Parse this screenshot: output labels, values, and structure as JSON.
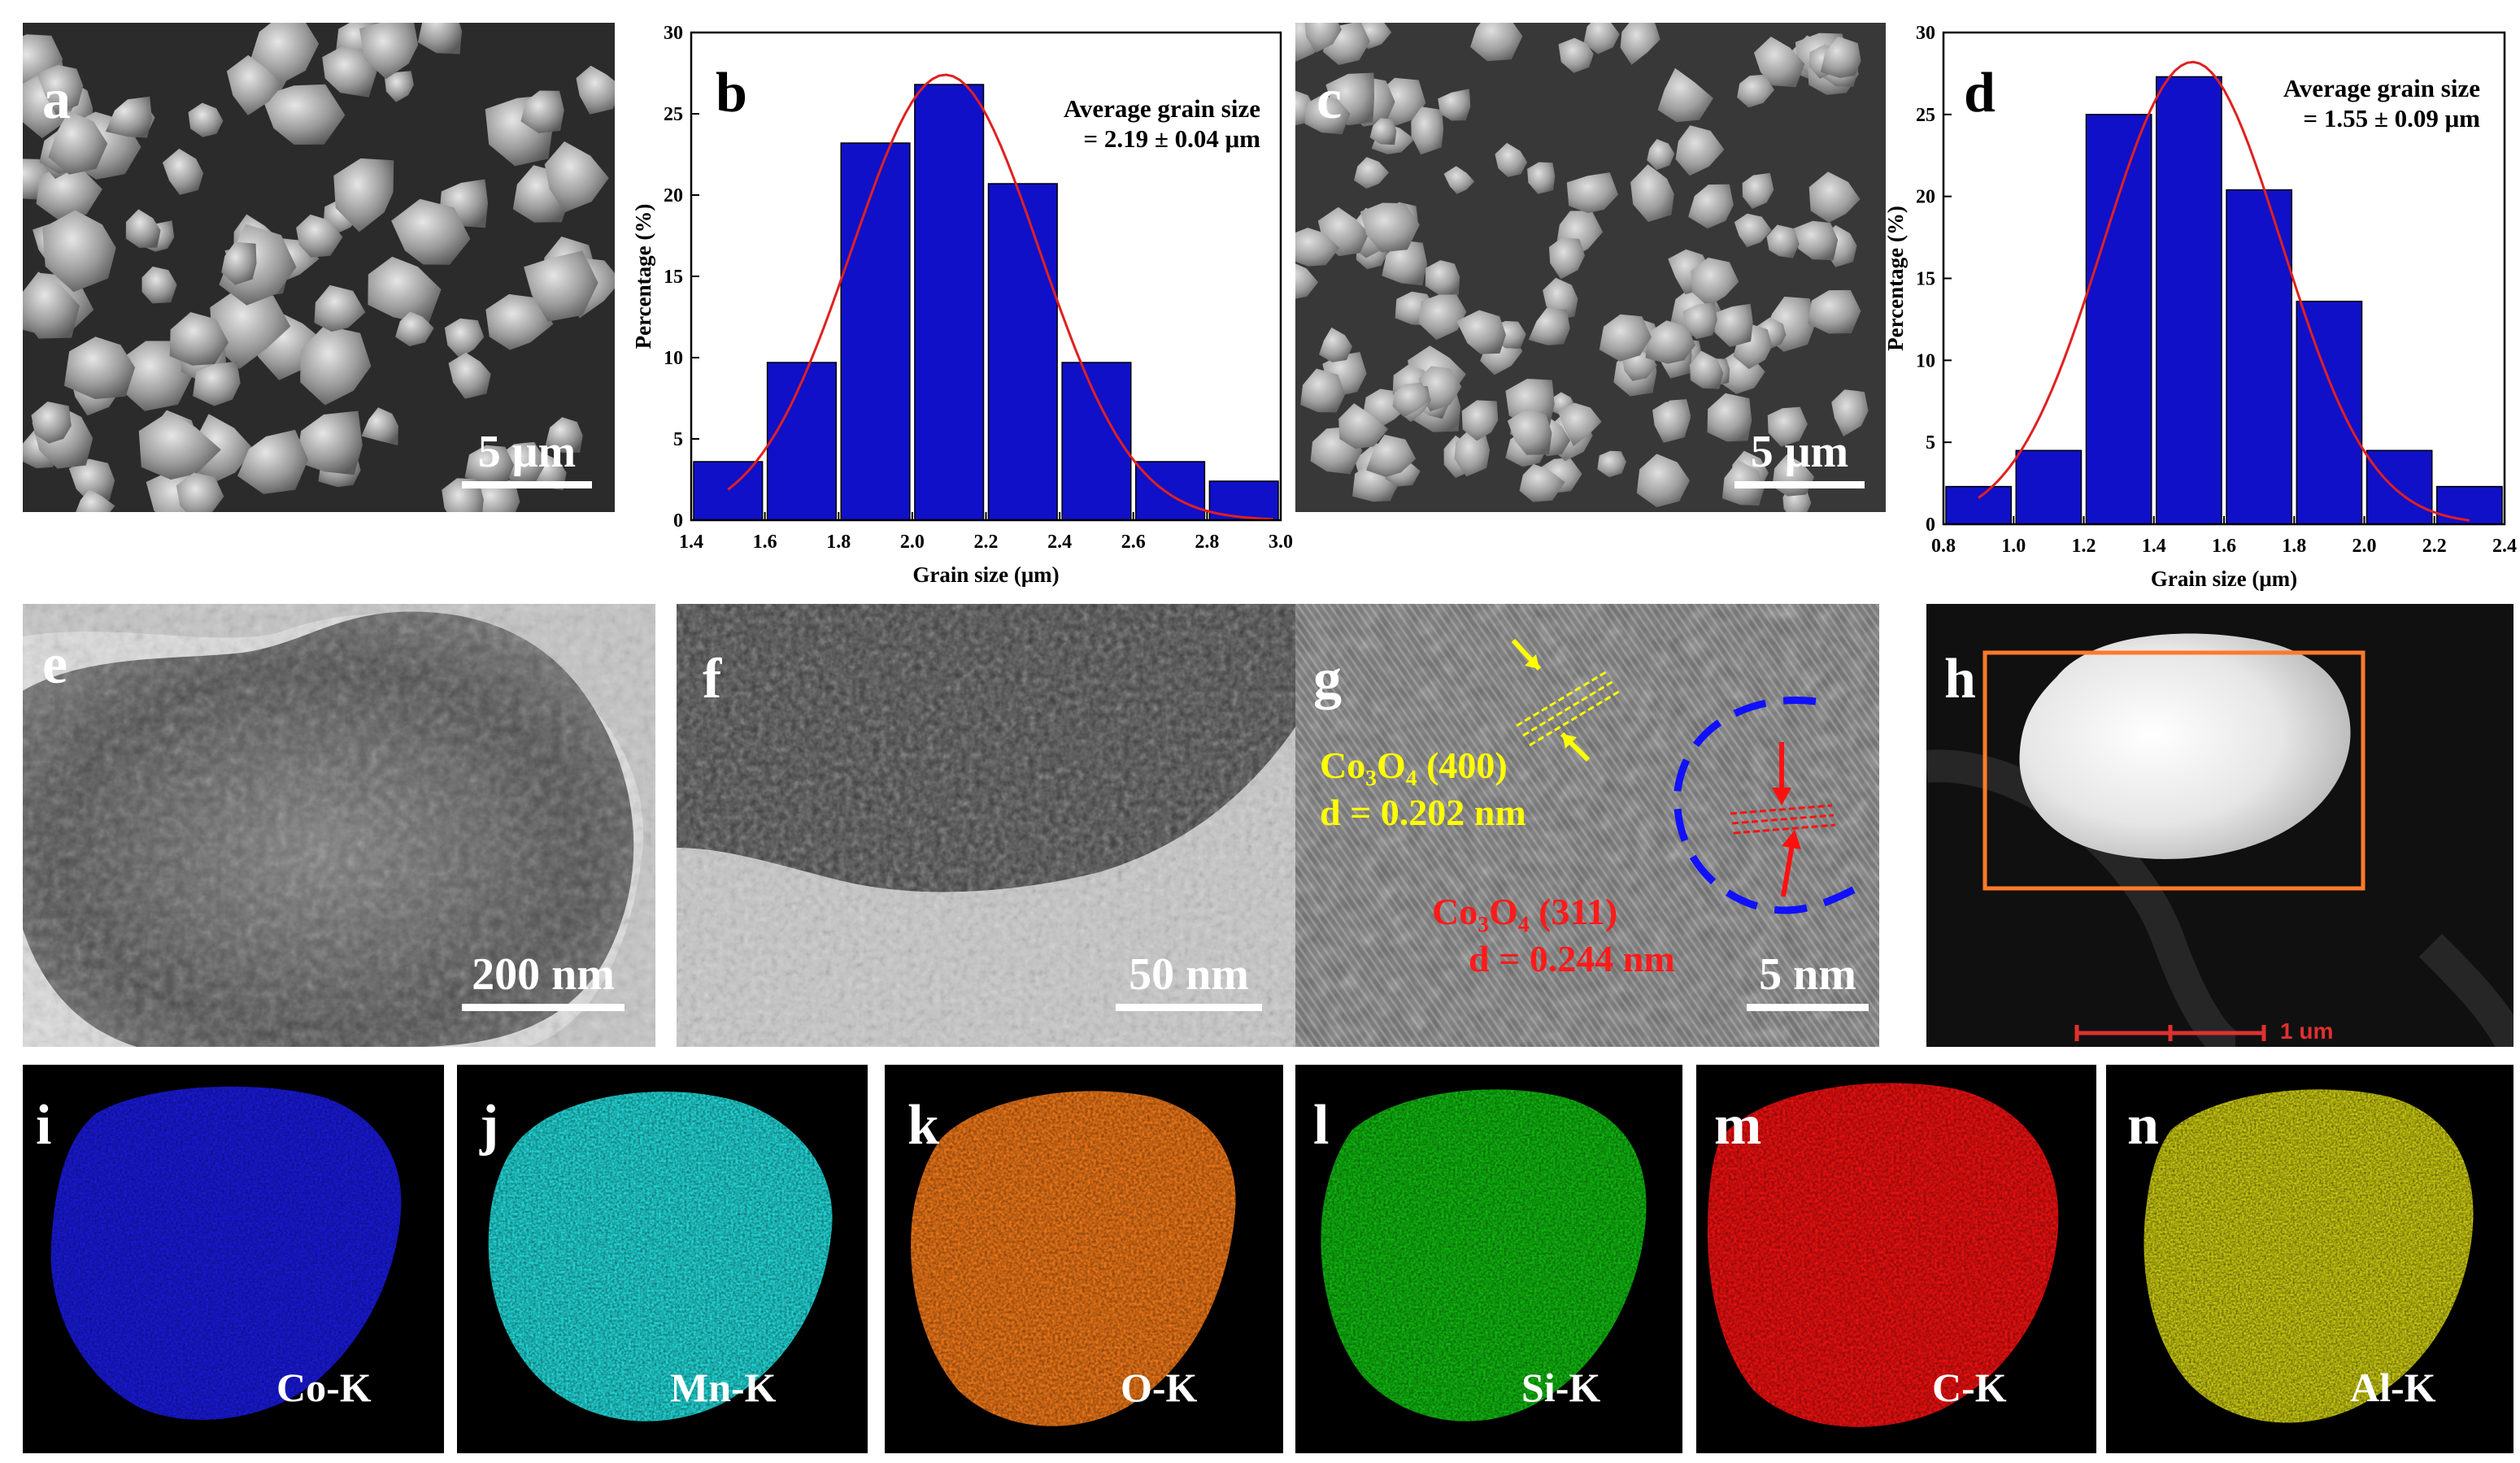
{
  "panels": {
    "a": {
      "letter": "a",
      "scale": "5 μm"
    },
    "b": {
      "letter": "b"
    },
    "c": {
      "letter": "c",
      "scale": "5 μm"
    },
    "d": {
      "letter": "d"
    },
    "e": {
      "letter": "e",
      "scale": "200 nm"
    },
    "f": {
      "letter": "f",
      "scale": "50 nm"
    },
    "g": {
      "letter": "g",
      "scale": "5 nm",
      "ann1_line1": "Co₃O₄ (400)",
      "ann1_line2": "d = 0.202 nm",
      "ann2_line1": "Co₃O₄ (311)",
      "ann2_line2": "d = 0.244 nm"
    },
    "h": {
      "letter": "h",
      "scale": "1 um"
    },
    "i": {
      "letter": "i",
      "element": "Co-K"
    },
    "j": {
      "letter": "j",
      "element": "Mn-K"
    },
    "k": {
      "letter": "k",
      "element": "O-K"
    },
    "l": {
      "letter": "l",
      "element": "Si-K"
    },
    "m": {
      "letter": "m",
      "element": "C-K"
    },
    "n": {
      "letter": "n",
      "element": "Al-K"
    }
  },
  "colors": {
    "bar_fill": "#1010c8",
    "fit_line": "#e02020",
    "co_map": "#1a1aff",
    "mn_map": "#00e0e0",
    "o_map": "#ff8000",
    "si_map": "#00c000",
    "c_map": "#ff1010",
    "al_map": "#d8d800"
  },
  "chart_data": [
    {
      "type": "bar",
      "panel": "b",
      "xlabel": "Grain size (μm)",
      "ylabel": "Percentage (%)",
      "xlim": [
        1.4,
        3.0
      ],
      "ylim": [
        0,
        30
      ],
      "xticks": [
        "1.4",
        "1.6",
        "1.8",
        "2.0",
        "2.2",
        "2.4",
        "2.6",
        "2.8",
        "3.0"
      ],
      "yticks": [
        "0",
        "5",
        "10",
        "15",
        "20",
        "25",
        "30"
      ],
      "bin_width": 0.2,
      "x": [
        1.5,
        1.7,
        1.9,
        2.1,
        2.3,
        2.5,
        2.7,
        2.9
      ],
      "values": [
        3.6,
        9.7,
        23.2,
        26.8,
        20.7,
        9.7,
        3.6,
        2.4
      ],
      "fit": {
        "type": "gaussian",
        "mean": 2.09,
        "sigma": 0.255,
        "peak": 27.4,
        "x_range": [
          1.5,
          2.98
        ]
      },
      "annotation_line1": "Average grain size",
      "annotation_line2": "= 2.19 ± 0.04 μm"
    },
    {
      "type": "bar",
      "panel": "d",
      "xlabel": "Grain size (μm)",
      "ylabel": "Percentage (%)",
      "xlim": [
        0.8,
        2.4
      ],
      "ylim": [
        0,
        30
      ],
      "xticks": [
        "0.8",
        "1.0",
        "1.2",
        "1.4",
        "1.6",
        "1.8",
        "2.0",
        "2.2",
        "2.4"
      ],
      "yticks": [
        "0",
        "5",
        "10",
        "15",
        "20",
        "25",
        "30"
      ],
      "bin_width": 0.2,
      "x": [
        0.9,
        1.1,
        1.3,
        1.5,
        1.7,
        1.9,
        2.1,
        2.3
      ],
      "values": [
        2.3,
        4.5,
        25.0,
        27.3,
        20.4,
        13.6,
        4.5,
        2.3
      ],
      "fit": {
        "type": "gaussian",
        "mean": 1.51,
        "sigma": 0.255,
        "peak": 28.2,
        "x_range": [
          0.9,
          2.3
        ]
      },
      "annotation_line1": "Average grain size",
      "annotation_line2": "= 1.55 ± 0.09 μm"
    }
  ]
}
